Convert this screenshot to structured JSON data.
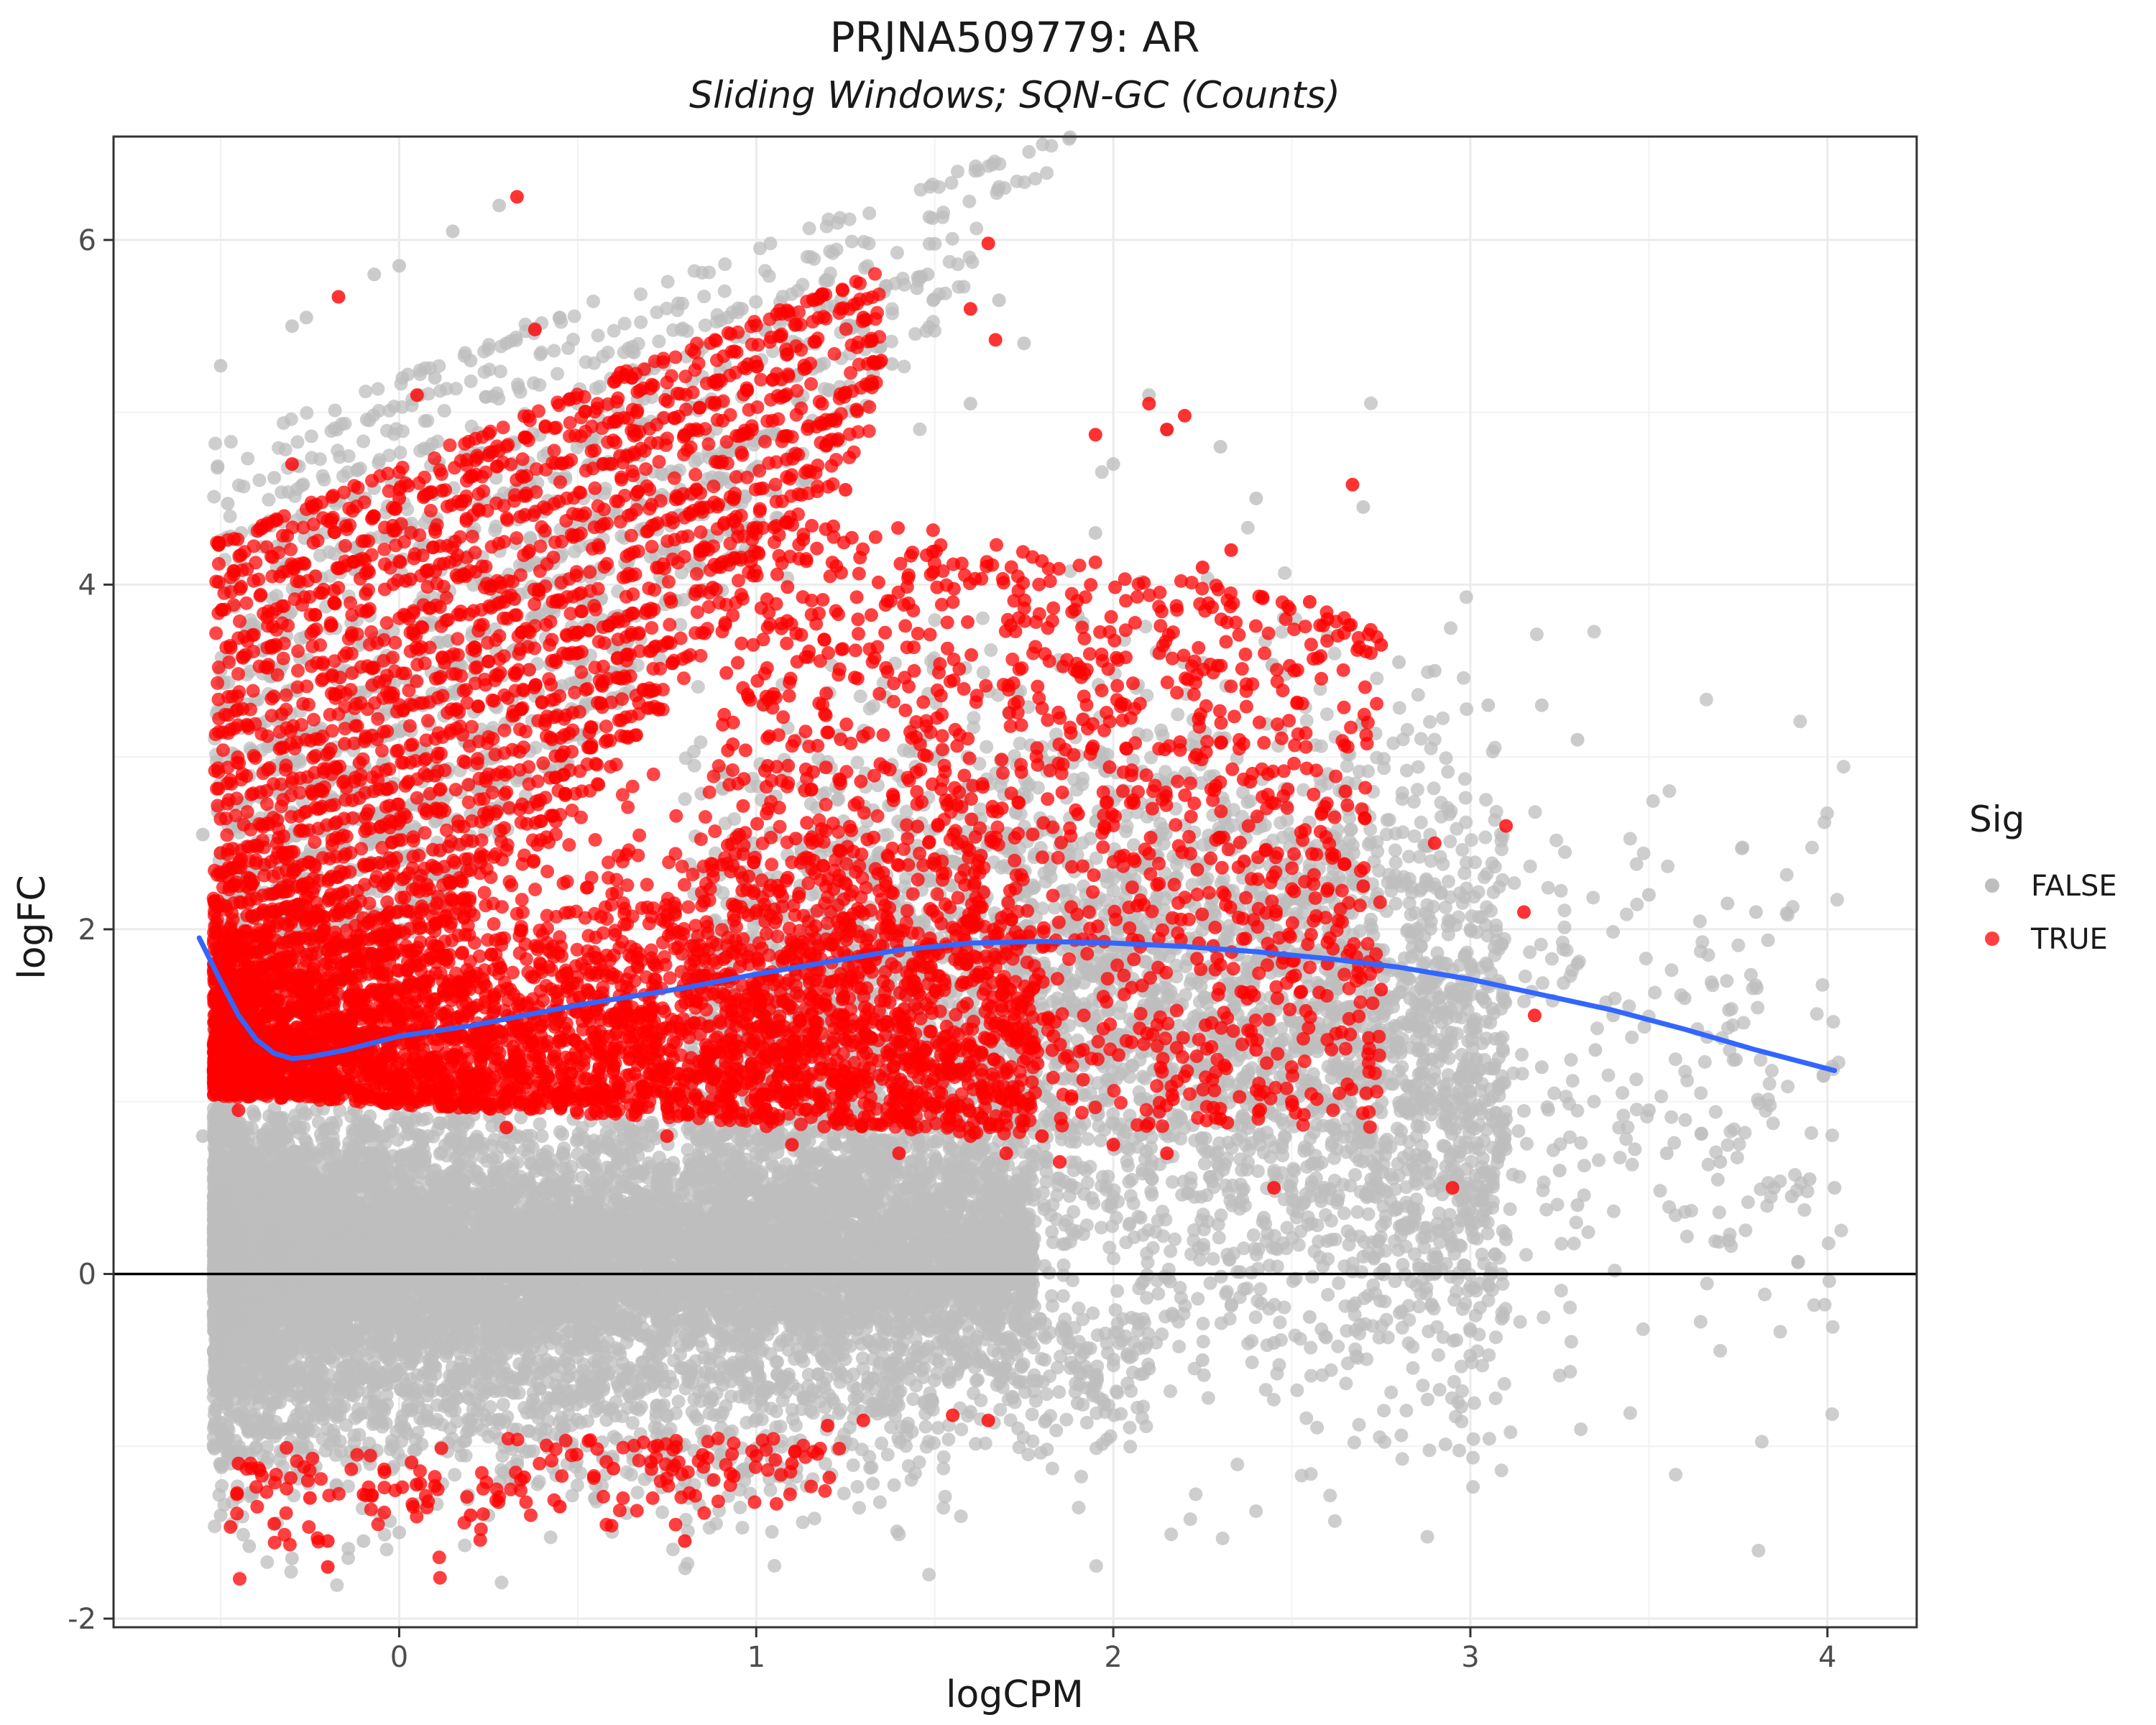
{
  "chart_data": {
    "type": "scatter",
    "title": "PRJNA509779: AR",
    "subtitle": "Sliding Windows; SQN-GC (Counts)",
    "xlabel": "logCPM",
    "ylabel": "logFC",
    "xlim": [
      -0.8,
      4.25
    ],
    "ylim": [
      -2.05,
      6.6
    ],
    "x_ticks": [
      0,
      1,
      2,
      3,
      4
    ],
    "y_ticks": [
      -2,
      0,
      2,
      4,
      6
    ],
    "grid": true,
    "hline": 0,
    "legend": {
      "title": "Sig",
      "placement": "right",
      "entries": [
        {
          "label": "FALSE",
          "color": "#bebebe"
        },
        {
          "label": "TRUE",
          "color": "#ff0000"
        }
      ]
    },
    "series": [
      {
        "label": "FALSE",
        "color": "#bebebe",
        "points": [
          [
            -0.5,
            5.27
          ],
          [
            -0.48,
            4.47
          ],
          [
            -0.35,
            4.62
          ],
          [
            -0.3,
            5.5
          ],
          [
            -0.26,
            5.55
          ],
          [
            0.0,
            5.85
          ],
          [
            -0.07,
            5.8
          ],
          [
            0.15,
            6.05
          ],
          [
            0.28,
            6.2
          ],
          [
            0.1,
            5.2
          ],
          [
            0.2,
            5.3
          ],
          [
            0.3,
            5.4
          ],
          [
            0.45,
            5.55
          ],
          [
            0.5,
            5.05
          ],
          [
            0.92,
            5.55
          ],
          [
            0.96,
            5.6
          ],
          [
            1.15,
            5.4
          ],
          [
            1.3,
            5.48
          ],
          [
            1.45,
            5.72
          ],
          [
            1.48,
            5.8
          ],
          [
            1.68,
            5.65
          ],
          [
            1.6,
            5.05
          ],
          [
            1.75,
            5.4
          ],
          [
            1.38,
            5.28
          ],
          [
            2.1,
            5.1
          ],
          [
            2.15,
            4.9
          ],
          [
            2.4,
            4.5
          ],
          [
            2.7,
            4.45
          ],
          [
            2.8,
            3.55
          ],
          [
            2.9,
            3.5
          ],
          [
            3.05,
            3.3
          ],
          [
            3.2,
            3.3
          ],
          [
            3.3,
            3.1
          ],
          [
            3.5,
            2.2
          ],
          [
            3.72,
            2.15
          ],
          [
            3.8,
            2.1
          ],
          [
            3.6,
            1.6
          ],
          [
            3.4,
            1.5
          ],
          [
            3.2,
            1.2
          ],
          [
            3.5,
            0.95
          ],
          [
            3.55,
            0.7
          ],
          [
            3.7,
            0.65
          ],
          [
            3.85,
            0.5
          ],
          [
            3.9,
            0.45
          ],
          [
            3.95,
            0.55
          ],
          [
            4.02,
            0.5
          ],
          [
            3.3,
            0.4
          ],
          [
            3.1,
            0.2
          ],
          [
            2.9,
            0.0
          ],
          [
            2.7,
            0.1
          ],
          [
            2.55,
            -0.25
          ],
          [
            2.45,
            -0.4
          ],
          [
            2.1,
            -0.55
          ],
          [
            1.95,
            -0.65
          ],
          [
            2.25,
            -0.5
          ],
          [
            1.9,
            -0.75
          ],
          [
            1.6,
            -0.8
          ],
          [
            1.2,
            -0.85
          ],
          [
            0.9,
            -1.05
          ],
          [
            0.85,
            -1.15
          ],
          [
            0.8,
            -1.2
          ],
          [
            0.55,
            -1.3
          ],
          [
            0.25,
            -1.4
          ],
          [
            0.0,
            -1.5
          ],
          [
            -0.1,
            -1.55
          ],
          [
            -0.3,
            -1.65
          ],
          [
            -0.42,
            -1.58
          ],
          [
            -0.5,
            -1.4
          ],
          [
            -0.52,
            -0.6
          ],
          [
            -0.55,
            0.8
          ],
          [
            -0.55,
            2.55
          ],
          [
            -0.5,
            3.5
          ],
          [
            2.3,
            4.8
          ],
          [
            2.0,
            4.7
          ],
          [
            1.95,
            4.3
          ],
          [
            2.6,
            3.7
          ],
          [
            3.0,
            2.0
          ],
          [
            3.3,
            1.8
          ],
          [
            3.1,
            0.9
          ],
          [
            3.25,
            0.6
          ],
          [
            3.35,
            1.3
          ],
          [
            2.95,
            1.6
          ],
          [
            2.85,
            1.1
          ]
        ]
      },
      {
        "label": "TRUE",
        "color": "#ff0000",
        "points": [
          [
            0.33,
            6.25
          ],
          [
            1.65,
            5.98
          ],
          [
            -0.17,
            5.67
          ],
          [
            0.38,
            5.48
          ],
          [
            1.3,
            5.55
          ],
          [
            1.6,
            5.6
          ],
          [
            1.67,
            5.42
          ],
          [
            0.05,
            5.1
          ],
          [
            0.62,
            5.23
          ],
          [
            1.35,
            5.3
          ],
          [
            2.15,
            4.9
          ],
          [
            2.2,
            4.98
          ],
          [
            2.1,
            5.05
          ],
          [
            1.95,
            4.87
          ],
          [
            2.67,
            4.58
          ],
          [
            2.33,
            4.2
          ],
          [
            0.25,
            4.75
          ],
          [
            1.25,
            4.55
          ],
          [
            -0.3,
            4.7
          ],
          [
            0.0,
            4.5
          ],
          [
            2.25,
            4.1
          ],
          [
            2.55,
            3.9
          ],
          [
            2.75,
            3.65
          ],
          [
            2.6,
            3.8
          ],
          [
            2.9,
            2.5
          ],
          [
            3.1,
            2.6
          ],
          [
            3.15,
            2.1
          ],
          [
            3.18,
            1.5
          ],
          [
            2.65,
            2.8
          ],
          [
            2.7,
            2.25
          ],
          [
            2.6,
            1.8
          ],
          [
            2.75,
            1.65
          ],
          [
            2.4,
            1.3
          ],
          [
            2.5,
            1.0
          ],
          [
            2.3,
            0.9
          ],
          [
            2.15,
            0.7
          ],
          [
            2.45,
            0.5
          ],
          [
            2.0,
            0.75
          ],
          [
            1.8,
            0.8
          ],
          [
            1.85,
            0.65
          ],
          [
            2.95,
            0.5
          ],
          [
            1.7,
            0.7
          ],
          [
            1.3,
            -0.85
          ],
          [
            1.55,
            -0.82
          ],
          [
            1.65,
            -0.85
          ],
          [
            1.2,
            -0.88
          ],
          [
            1.1,
            -1.1
          ],
          [
            0.85,
            -1.05
          ],
          [
            0.6,
            -1.13
          ],
          [
            0.8,
            -1.55
          ],
          [
            0.35,
            -1.18
          ],
          [
            0.1,
            -1.23
          ],
          [
            -0.1,
            -1.28
          ],
          [
            -0.2,
            -1.55
          ],
          [
            -0.2,
            -1.7
          ],
          [
            -0.35,
            -1.45
          ],
          [
            -0.45,
            -1.1
          ],
          [
            -0.25,
            -1.3
          ],
          [
            0.2,
            -1.4
          ],
          [
            0.45,
            -1.35
          ],
          [
            -0.5,
            1.6
          ],
          [
            -0.48,
            1.3
          ],
          [
            -0.45,
            0.95
          ],
          [
            0.3,
            0.85
          ],
          [
            0.75,
            0.8
          ],
          [
            1.1,
            0.75
          ],
          [
            1.4,
            0.7
          ],
          [
            1.6,
            0.8
          ]
        ],
        "bands": {
          "lower_right": [
            [
              -0.55,
              1.72,
              0.05
            ],
            [
              -0.48,
              4.55,
              0.55
            ],
            [
              -0.52,
              3.95,
              0.9
            ],
            [
              -0.5,
              3.6,
              1.15
            ],
            [
              -0.5,
              3.25,
              1.4
            ]
          ],
          "diagonal_rows": [
            [
              -0.45,
              4.55,
              0.35,
              5.05
            ],
            [
              -0.48,
              3.95,
              0.45,
              4.55
            ],
            [
              -0.5,
              3.6,
              0.6,
              4.28
            ],
            [
              -0.5,
              3.25,
              0.8,
              4.1
            ],
            [
              -0.5,
              3.0,
              1.0,
              3.95
            ],
            [
              -0.5,
              2.75,
              1.2,
              3.8
            ]
          ],
          "fan_region": [
            [
              -0.52,
              1.0
            ],
            [
              0.5,
              0.9
            ],
            [
              1.3,
              0.75
            ],
            [
              2.0,
              0.7
            ],
            [
              2.6,
              0.85
            ],
            [
              2.75,
              1.6
            ],
            [
              2.6,
              2.8
            ],
            [
              2.2,
              3.7
            ],
            [
              1.6,
              4.4
            ],
            [
              0.8,
              4.2
            ],
            [
              0.0,
              3.6
            ],
            [
              -0.52,
              2.2
            ]
          ]
        }
      },
      {
        "label": "loess",
        "color": "#3366ff",
        "kind": "line",
        "x": [
          -0.56,
          -0.5,
          -0.45,
          -0.4,
          -0.35,
          -0.3,
          -0.25,
          -0.15,
          0.0,
          0.2,
          0.5,
          0.8,
          1.0,
          1.2,
          1.4,
          1.6,
          1.8,
          2.0,
          2.2,
          2.4,
          2.6,
          2.8,
          3.0,
          3.2,
          3.4,
          3.6,
          3.8,
          4.02
        ],
        "y": [
          1.95,
          1.7,
          1.5,
          1.36,
          1.28,
          1.25,
          1.26,
          1.3,
          1.38,
          1.44,
          1.56,
          1.66,
          1.74,
          1.81,
          1.88,
          1.92,
          1.93,
          1.92,
          1.9,
          1.87,
          1.83,
          1.78,
          1.71,
          1.62,
          1.53,
          1.42,
          1.3,
          1.18
        ]
      }
    ]
  }
}
